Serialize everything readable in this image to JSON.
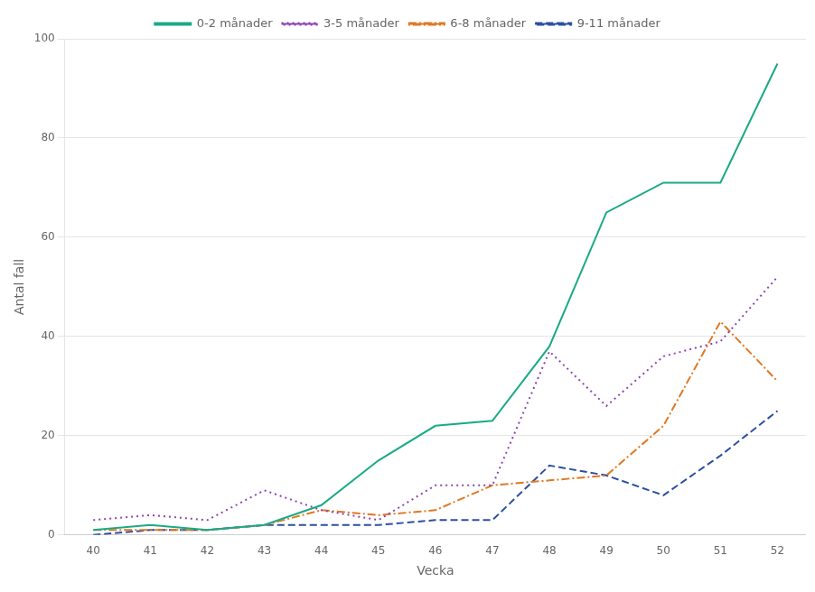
{
  "chart_data": {
    "type": "line",
    "x_label": "Vecka",
    "y_label": "Antal fall",
    "x": [
      40,
      41,
      42,
      43,
      44,
      45,
      46,
      47,
      48,
      49,
      50,
      51,
      52
    ],
    "series": [
      {
        "name": "0-2 månader",
        "color": "#1aaa85",
        "line_style": "solid",
        "values": [
          1,
          2,
          1,
          2,
          6,
          15,
          22,
          23,
          38,
          65,
          71,
          71,
          95
        ]
      },
      {
        "name": "3-5 månader",
        "color": "#8b44b5",
        "line_style": "dotted",
        "values": [
          3,
          4,
          3,
          9,
          5,
          3,
          10,
          10,
          37,
          26,
          36,
          39,
          52
        ]
      },
      {
        "name": "6-8 månader",
        "color": "#e07820",
        "line_style": "dashdot",
        "values": [
          1,
          1,
          1,
          2,
          5,
          4,
          5,
          10,
          11,
          12,
          22,
          43,
          31
        ]
      },
      {
        "name": "9-11 månader",
        "color": "#2c4fa3",
        "line_style": "dashed",
        "values": [
          0,
          1,
          1,
          2,
          2,
          2,
          3,
          3,
          14,
          12,
          8,
          16,
          25
        ]
      }
    ],
    "xlim": [
      39.5,
      52.5
    ],
    "xticks": [
      40,
      41,
      42,
      43,
      44,
      45,
      46,
      47,
      48,
      49,
      50,
      51,
      52
    ],
    "ylim": [
      0,
      100
    ],
    "yticks": [
      0,
      20,
      40,
      60,
      80,
      100
    ],
    "grid": true,
    "legend": "top"
  }
}
